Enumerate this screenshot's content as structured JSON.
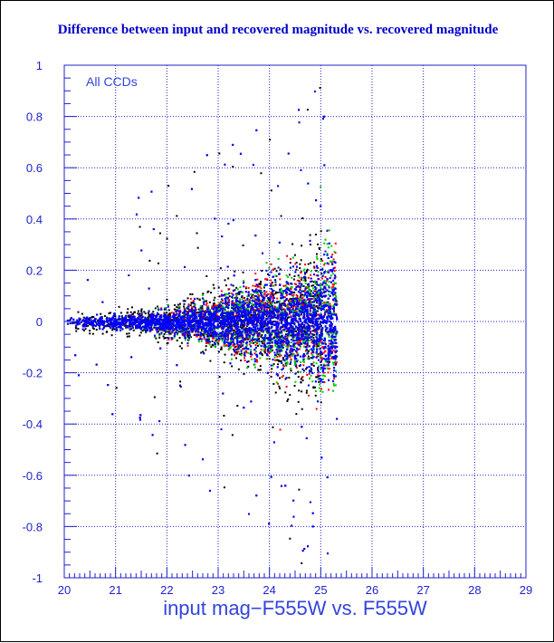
{
  "chart_data": {
    "type": "scatter",
    "title": "Difference between input and recovered magnitude vs. recovered magnitude",
    "xlabel": "input mag−F555W vs. F555W",
    "ylabel": "",
    "xlim": [
      20,
      29
    ],
    "ylim": [
      -1,
      1
    ],
    "x_ticks": [
      "20",
      "21",
      "22",
      "23",
      "24",
      "25",
      "26",
      "27",
      "28",
      "29"
    ],
    "y_ticks": [
      "1",
      "0.8",
      "0.6",
      "0.4",
      "0.2",
      "0",
      "-0.2",
      "-0.4",
      "-0.6",
      "-0.8",
      "-1"
    ],
    "annotation": "All CCDs",
    "grid": true,
    "series": [
      {
        "color": "#000000",
        "cutoff_mag": 25.0,
        "scatter_sigma_bright": 0.02,
        "scatter_sigma_faint": 0.15
      },
      {
        "color": "#ff0000",
        "cutoff_mag": 25.3,
        "scatter_sigma_bright": 0.01,
        "scatter_sigma_faint": 0.14
      },
      {
        "color": "#00cc00",
        "cutoff_mag": 25.3,
        "scatter_sigma_bright": 0.01,
        "scatter_sigma_faint": 0.14
      },
      {
        "color": "#0000ff",
        "cutoff_mag": 25.3,
        "scatter_sigma_bright": 0.01,
        "scatter_sigma_faint": 0.12
      }
    ]
  }
}
